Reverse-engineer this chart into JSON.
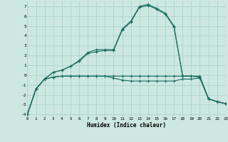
{
  "xlabel": "Humidex (Indice chaleur)",
  "background_color": "#cce8e0",
  "grid_color": "#a8cfc8",
  "line_color": "#1a6e60",
  "x_values": [
    0,
    1,
    2,
    3,
    4,
    5,
    6,
    7,
    8,
    9,
    10,
    11,
    12,
    13,
    14,
    15,
    16,
    17,
    18,
    19,
    20,
    21,
    22,
    23
  ],
  "s1_y": [
    -4.0,
    -1.4,
    -0.4,
    -0.2,
    -0.1,
    -0.1,
    -0.1,
    -0.1,
    -0.1,
    -0.1,
    -0.1,
    -0.1,
    -0.1,
    -0.1,
    -0.1,
    -0.1,
    -0.1,
    -0.1,
    -0.1,
    -0.1,
    -0.1,
    -2.4,
    -2.7,
    -2.9
  ],
  "s2_y": [
    -4.0,
    -1.4,
    -0.4,
    0.3,
    0.5,
    0.9,
    1.5,
    2.3,
    2.6,
    2.6,
    2.6,
    4.7,
    5.5,
    7.0,
    7.2,
    6.8,
    6.3,
    5.0,
    -0.1,
    -0.1,
    -0.2,
    -2.4,
    -2.7,
    -2.9
  ],
  "s3_y": [
    -4.0,
    -1.4,
    -0.4,
    0.3,
    0.5,
    0.9,
    1.4,
    2.2,
    2.4,
    2.5,
    2.5,
    4.6,
    5.4,
    6.9,
    7.1,
    6.7,
    6.2,
    4.9,
    -0.1,
    -0.1,
    -0.2,
    -2.4,
    -2.7,
    -2.9
  ],
  "s4_y": [
    -4.0,
    -1.4,
    -0.4,
    -0.2,
    -0.1,
    -0.1,
    -0.1,
    -0.1,
    -0.1,
    -0.1,
    -0.3,
    -0.5,
    -0.6,
    -0.6,
    -0.6,
    -0.6,
    -0.6,
    -0.6,
    -0.4,
    -0.4,
    -0.3,
    -2.4,
    -2.7,
    -2.9
  ],
  "xlim": [
    0,
    23
  ],
  "ylim": [
    -4.2,
    7.5
  ],
  "yticks": [
    -4,
    -3,
    -2,
    -1,
    0,
    1,
    2,
    3,
    4,
    5,
    6,
    7
  ],
  "ytick_labels": [
    "-4",
    "-3",
    "-2",
    "-1",
    "0",
    "1",
    "2",
    "3",
    "4",
    "5",
    "6",
    "7"
  ],
  "xticks": [
    0,
    1,
    2,
    3,
    4,
    5,
    6,
    7,
    8,
    9,
    10,
    11,
    12,
    13,
    14,
    15,
    16,
    17,
    18,
    19,
    20,
    21,
    22,
    23
  ]
}
